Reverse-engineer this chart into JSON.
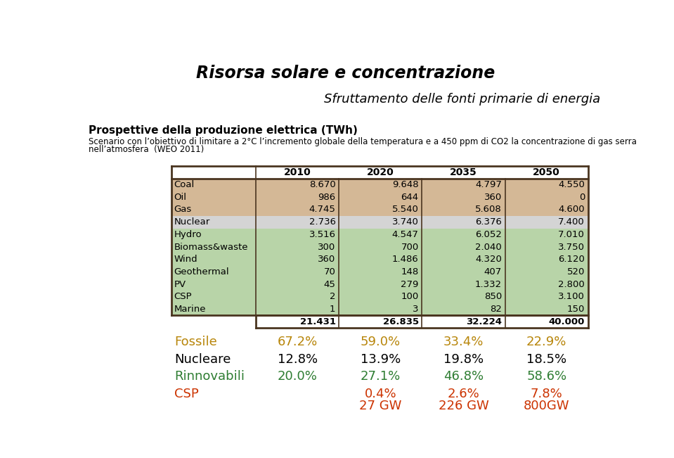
{
  "title1": "Risorsa solare e concentrazione",
  "title2": "Sfruttamento delle fonti primarie di energia",
  "subtitle1": "Prospettive della produzione elettrica (TWh)",
  "subtitle2_line1": "Scenario con l’obiettivo di limitare a 2°C l’incremento globale della temperatura e a 450 ppm di CO2 la concentrazione di gas serra",
  "subtitle2_line2": "nell’atmosfera  (WEO 2011)",
  "col_headers": [
    "2010",
    "2020",
    "2035",
    "2050"
  ],
  "rows": [
    {
      "label": "Coal",
      "values": [
        "8.670",
        "9.648",
        "4.797",
        "4.550"
      ],
      "bg": "#d4b896"
    },
    {
      "label": "Oil",
      "values": [
        "986",
        "644",
        "360",
        "0"
      ],
      "bg": "#d4b896"
    },
    {
      "label": "Gas",
      "values": [
        "4.745",
        "5.540",
        "5.608",
        "4.600"
      ],
      "bg": "#d4b896"
    },
    {
      "label": "Nuclear",
      "values": [
        "2.736",
        "3.740",
        "6.376",
        "7.400"
      ],
      "bg": "#d4d4d4"
    },
    {
      "label": "Hydro",
      "values": [
        "3.516",
        "4.547",
        "6.052",
        "7.010"
      ],
      "bg": "#b8d4a8"
    },
    {
      "label": "Biomass&waste",
      "values": [
        "300",
        "700",
        "2.040",
        "3.750"
      ],
      "bg": "#b8d4a8"
    },
    {
      "label": "Wind",
      "values": [
        "360",
        "1.486",
        "4.320",
        "6.120"
      ],
      "bg": "#b8d4a8"
    },
    {
      "label": "Geothermal",
      "values": [
        "70",
        "148",
        "407",
        "520"
      ],
      "bg": "#b8d4a8"
    },
    {
      "label": "PV",
      "values": [
        "45",
        "279",
        "1.332",
        "2.800"
      ],
      "bg": "#b8d4a8"
    },
    {
      "label": "CSP",
      "values": [
        "2",
        "100",
        "850",
        "3.100"
      ],
      "bg": "#b8d4a8"
    },
    {
      "label": "Marine",
      "values": [
        "1",
        "3",
        "82",
        "150"
      ],
      "bg": "#b8d4a8"
    }
  ],
  "totals": [
    "21.431",
    "26.835",
    "32.224",
    "40.000"
  ],
  "summary_rows": [
    {
      "label": "Fossile",
      "label_color": "#b8860b",
      "values": [
        "67.2%",
        "59.0%",
        "33.4%",
        "22.9%"
      ],
      "value_color": "#b8860b"
    },
    {
      "label": "Nucleare",
      "label_color": "#000000",
      "values": [
        "12.8%",
        "13.9%",
        "19.8%",
        "18.5%"
      ],
      "value_color": "#000000"
    },
    {
      "label": "Rinnovabili",
      "label_color": "#2e7d32",
      "values": [
        "20.0%",
        "27.1%",
        "46.8%",
        "58.6%"
      ],
      "value_color": "#2e7d32"
    },
    {
      "label": "CSP",
      "label_color": "#cc3300",
      "values": [
        "",
        "0.4%",
        "2.6%",
        "7.8%"
      ],
      "value_color": "#cc3300"
    }
  ],
  "gw_row": {
    "values": [
      "",
      "27 GW",
      "226 GW",
      "800GW"
    ],
    "color": "#cc3300"
  },
  "border_color": "#4a3520",
  "fig_w": 9.59,
  "fig_h": 6.51,
  "dpi": 100
}
